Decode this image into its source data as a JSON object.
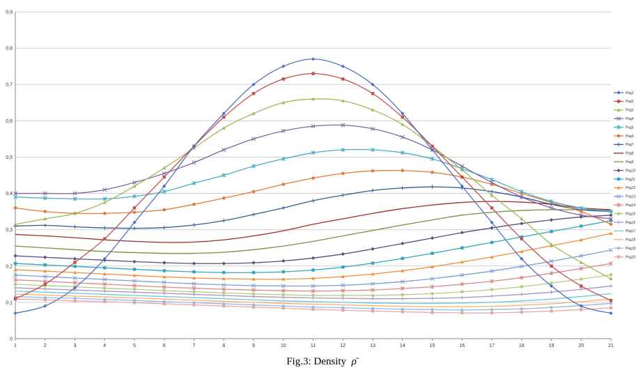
{
  "caption": {
    "text": "Fig.3: Density",
    "symbol": "ρ̄"
  },
  "chart_data": {
    "type": "line",
    "x": [
      1,
      2,
      3,
      4,
      5,
      6,
      7,
      8,
      9,
      10,
      11,
      12,
      13,
      14,
      15,
      16,
      17,
      18,
      19,
      20,
      21
    ],
    "ylim": [
      0,
      0.9
    ],
    "yticks": [
      "0",
      "0,1",
      "0,2",
      "0,3",
      "0,4",
      "0,5",
      "0,6",
      "0,7",
      "0,8",
      "0,9"
    ],
    "grid": true,
    "legend_position": "right",
    "series": [
      {
        "name": "Ряд1",
        "color": "#4F72BE",
        "marker": "diamond",
        "values": [
          0.07,
          0.09,
          0.14,
          0.22,
          0.32,
          0.42,
          0.53,
          0.62,
          0.7,
          0.75,
          0.77,
          0.75,
          0.7,
          0.62,
          0.52,
          0.42,
          0.32,
          0.22,
          0.145,
          0.09,
          0.07
        ]
      },
      {
        "name": "Ряд2",
        "color": "#C0504D",
        "marker": "square",
        "values": [
          0.11,
          0.15,
          0.21,
          0.275,
          0.36,
          0.445,
          0.53,
          0.61,
          0.675,
          0.715,
          0.73,
          0.715,
          0.675,
          0.61,
          0.53,
          0.445,
          0.36,
          0.275,
          0.2,
          0.145,
          0.105
        ]
      },
      {
        "name": "Ряд3",
        "color": "#9BBB59",
        "marker": "triangle",
        "values": [
          0.315,
          0.33,
          0.345,
          0.375,
          0.42,
          0.47,
          0.525,
          0.58,
          0.62,
          0.65,
          0.66,
          0.655,
          0.63,
          0.59,
          0.53,
          0.465,
          0.395,
          0.33,
          0.26,
          0.21,
          0.165
        ]
      },
      {
        "name": "Ряд4",
        "color": "#8064A2",
        "marker": "x",
        "values": [
          0.4,
          0.4,
          0.4,
          0.41,
          0.43,
          0.455,
          0.485,
          0.52,
          0.55,
          0.572,
          0.585,
          0.588,
          0.578,
          0.555,
          0.52,
          0.475,
          0.43,
          0.39,
          0.36,
          0.34,
          0.33
        ]
      },
      {
        "name": "Ряд5",
        "color": "#4BACC6",
        "marker": "star",
        "values": [
          0.39,
          0.387,
          0.385,
          0.385,
          0.392,
          0.405,
          0.428,
          0.45,
          0.475,
          0.495,
          0.512,
          0.52,
          0.52,
          0.512,
          0.495,
          0.468,
          0.438,
          0.405,
          0.378,
          0.36,
          0.35
        ]
      },
      {
        "name": "Ряд6",
        "color": "#E07B39",
        "marker": "circle",
        "values": [
          0.36,
          0.35,
          0.345,
          0.345,
          0.348,
          0.355,
          0.37,
          0.387,
          0.405,
          0.425,
          0.442,
          0.455,
          0.462,
          0.463,
          0.458,
          0.445,
          0.425,
          0.4,
          0.375,
          0.35,
          0.315
        ]
      },
      {
        "name": "Ряд7",
        "color": "#2E5B94",
        "marker": "plus",
        "values": [
          0.31,
          0.312,
          0.308,
          0.305,
          0.304,
          0.306,
          0.313,
          0.325,
          0.342,
          0.36,
          0.38,
          0.395,
          0.408,
          0.415,
          0.418,
          0.415,
          0.405,
          0.39,
          0.37,
          0.355,
          0.35
        ]
      },
      {
        "name": "Ряд8",
        "color": "#9B2D2A",
        "marker": "none",
        "values": [
          0.287,
          0.283,
          0.278,
          0.272,
          0.268,
          0.265,
          0.266,
          0.272,
          0.283,
          0.297,
          0.315,
          0.33,
          0.345,
          0.358,
          0.368,
          0.375,
          0.378,
          0.376,
          0.37,
          0.36,
          0.355
        ]
      },
      {
        "name": "Ряд9",
        "color": "#76923C",
        "marker": "none",
        "values": [
          0.255,
          0.25,
          0.245,
          0.24,
          0.237,
          0.235,
          0.235,
          0.238,
          0.245,
          0.255,
          0.268,
          0.283,
          0.298,
          0.313,
          0.327,
          0.34,
          0.348,
          0.353,
          0.355,
          0.355,
          0.353
        ]
      },
      {
        "name": "Ряд10",
        "color": "#5F497A",
        "marker": "diamond",
        "values": [
          0.228,
          0.224,
          0.22,
          0.216,
          0.212,
          0.209,
          0.207,
          0.207,
          0.209,
          0.214,
          0.222,
          0.233,
          0.247,
          0.262,
          0.277,
          0.292,
          0.305,
          0.317,
          0.327,
          0.335,
          0.34
        ]
      },
      {
        "name": "Ряд11",
        "color": "#31A5C0",
        "marker": "square",
        "values": [
          0.207,
          0.203,
          0.199,
          0.195,
          0.191,
          0.187,
          0.184,
          0.182,
          0.182,
          0.184,
          0.189,
          0.197,
          0.208,
          0.221,
          0.235,
          0.25,
          0.265,
          0.28,
          0.295,
          0.31,
          0.325
        ]
      },
      {
        "name": "Ряд12",
        "color": "#F0903A",
        "marker": "triangle",
        "values": [
          0.19,
          0.186,
          0.182,
          0.178,
          0.174,
          0.17,
          0.167,
          0.165,
          0.164,
          0.164,
          0.166,
          0.171,
          0.178,
          0.187,
          0.198,
          0.211,
          0.225,
          0.24,
          0.256,
          0.272,
          0.29
        ]
      },
      {
        "name": "Ряд13",
        "color": "#7E9CD8",
        "marker": "x",
        "values": [
          0.175,
          0.171,
          0.167,
          0.163,
          0.159,
          0.155,
          0.151,
          0.148,
          0.146,
          0.145,
          0.145,
          0.147,
          0.151,
          0.157,
          0.165,
          0.175,
          0.186,
          0.199,
          0.213,
          0.228,
          0.244
        ]
      },
      {
        "name": "Ряд14",
        "color": "#D88A88",
        "marker": "star",
        "values": [
          0.162,
          0.158,
          0.154,
          0.15,
          0.146,
          0.142,
          0.139,
          0.136,
          0.134,
          0.132,
          0.131,
          0.132,
          0.134,
          0.138,
          0.143,
          0.15,
          0.158,
          0.168,
          0.18,
          0.193,
          0.207
        ]
      },
      {
        "name": "Ряд15",
        "color": "#B4CC82",
        "marker": "circle",
        "values": [
          0.15,
          0.146,
          0.143,
          0.139,
          0.136,
          0.132,
          0.129,
          0.126,
          0.123,
          0.121,
          0.119,
          0.119,
          0.119,
          0.121,
          0.124,
          0.129,
          0.135,
          0.143,
          0.153,
          0.164,
          0.176
        ]
      },
      {
        "name": "Ряд16",
        "color": "#A592C4",
        "marker": "plus",
        "values": [
          0.14,
          0.137,
          0.134,
          0.131,
          0.128,
          0.125,
          0.122,
          0.119,
          0.116,
          0.114,
          0.112,
          0.111,
          0.11,
          0.11,
          0.111,
          0.113,
          0.117,
          0.122,
          0.128,
          0.136,
          0.145
        ]
      },
      {
        "name": "Ряд17",
        "color": "#6CC6DA",
        "marker": "none",
        "values": [
          0.131,
          0.128,
          0.125,
          0.122,
          0.119,
          0.116,
          0.113,
          0.11,
          0.107,
          0.104,
          0.102,
          0.1,
          0.098,
          0.097,
          0.097,
          0.098,
          0.1,
          0.104,
          0.109,
          0.116,
          0.124
        ]
      },
      {
        "name": "Ряд18",
        "color": "#F6B26B",
        "marker": "none",
        "values": [
          0.123,
          0.12,
          0.117,
          0.115,
          0.112,
          0.109,
          0.106,
          0.103,
          0.1,
          0.097,
          0.095,
          0.093,
          0.091,
          0.089,
          0.088,
          0.088,
          0.089,
          0.092,
          0.096,
          0.102,
          0.109
        ]
      },
      {
        "name": "Ряд19",
        "color": "#9BB4E0",
        "marker": "diamond",
        "values": [
          0.116,
          0.113,
          0.111,
          0.108,
          0.105,
          0.102,
          0.099,
          0.096,
          0.093,
          0.09,
          0.087,
          0.085,
          0.083,
          0.081,
          0.08,
          0.079,
          0.08,
          0.082,
          0.086,
          0.091,
          0.097
        ]
      },
      {
        "name": "Ряд20",
        "color": "#E6A9A7",
        "marker": "square",
        "values": [
          0.109,
          0.107,
          0.104,
          0.102,
          0.099,
          0.096,
          0.093,
          0.09,
          0.087,
          0.084,
          0.081,
          0.078,
          0.076,
          0.074,
          0.072,
          0.071,
          0.071,
          0.073,
          0.076,
          0.08,
          0.085
        ]
      }
    ]
  }
}
